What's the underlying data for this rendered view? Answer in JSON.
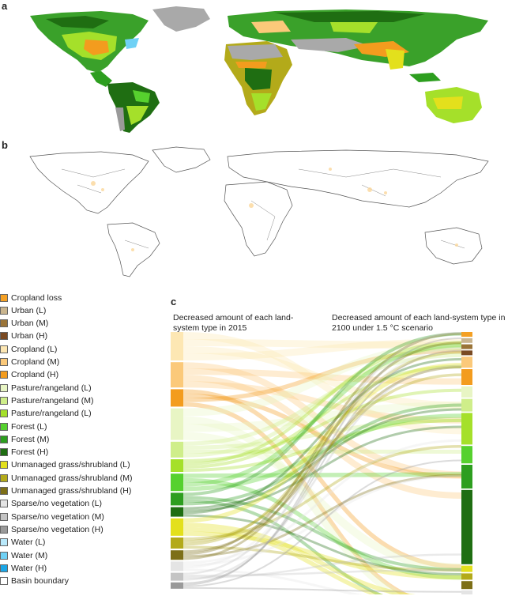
{
  "panels": {
    "a": "a",
    "b": "b",
    "c": "c"
  },
  "legend": [
    {
      "label": "Cropland loss",
      "color": "#f4a024"
    },
    {
      "label": "Urban (L)",
      "color": "#c9b58f"
    },
    {
      "label": "Urban (M)",
      "color": "#9a7438"
    },
    {
      "label": "Urban (H)",
      "color": "#7a4a22"
    },
    {
      "label": "Cropland (L)",
      "color": "#fde7b3"
    },
    {
      "label": "Cropland (M)",
      "color": "#fbc97a"
    },
    {
      "label": "Cropland (H)",
      "color": "#f39c1e"
    },
    {
      "label": "Pasture/rangeland (L)",
      "color": "#e8f5c4"
    },
    {
      "label": "Pasture/rangeland (M)",
      "color": "#cfee8a"
    },
    {
      "label": "Pasture/rangeland (L)",
      "color": "#a5e02a"
    },
    {
      "label": "Forest (L)",
      "color": "#56d12e"
    },
    {
      "label": "Forest (M)",
      "color": "#2d9e1f"
    },
    {
      "label": "Forest (H)",
      "color": "#1f6e12"
    },
    {
      "label": "Unmanaged grass/shrubland (L)",
      "color": "#e3e01c"
    },
    {
      "label": "Unmanaged grass/shrubland (M)",
      "color": "#b3aa1a"
    },
    {
      "label": "Unmanaged grass/shrubland (H)",
      "color": "#7d6f17"
    },
    {
      "label": "Sparse/no vegetation (L)",
      "color": "#e4e4e4"
    },
    {
      "label": "Sparse/no vegetation (M)",
      "color": "#c4c4c4"
    },
    {
      "label": "Sparse/no vegetation (H)",
      "color": "#9a9a9a"
    },
    {
      "label": "Water (L)",
      "color": "#b9e9fb"
    },
    {
      "label": "Water (M)",
      "color": "#6fd1f5"
    },
    {
      "label": "Water (H)",
      "color": "#1ba6e6"
    },
    {
      "label": "Basin boundary",
      "color": "#ffffff"
    }
  ],
  "sankey": {
    "left_title": "Decreased amount of each land-system type in 2015",
    "right_title": "Decreased amount of each land-system type in 2100 under 1.5 °C scenario"
  }
}
